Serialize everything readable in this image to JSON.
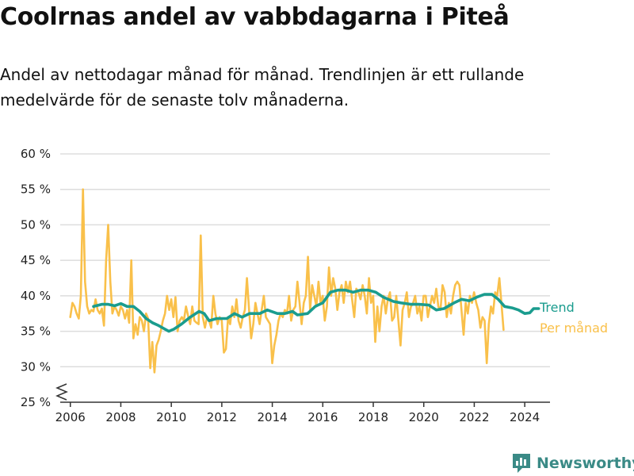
{
  "title": "Coolrnas andel av vabbdagarna i Piteå",
  "subtitle": "Andel av nettodagar månad för månad. Trendlinjen är ett rullande medelvärde för de senaste tolv månaderna.",
  "brand": "Newsworthy",
  "colors": {
    "trend": "#1a9c8e",
    "monthly": "#f9c04a",
    "grid": "#dddddd",
    "axis": "#333333",
    "brand": "#3a8a86"
  },
  "chart_data": {
    "type": "line",
    "title": "Coolrnas andel av vabbdagarna i Piteå",
    "xlabel": "",
    "ylabel": "",
    "xlim": [
      2005.6,
      2025.0
    ],
    "ylim": [
      25,
      60
    ],
    "y_axis_break": true,
    "x_ticks": [
      2006,
      2008,
      2010,
      2012,
      2014,
      2016,
      2018,
      2020,
      2022,
      2024
    ],
    "y_ticks": [
      {
        "value": 25,
        "label": "25 %"
      },
      {
        "value": 30,
        "label": "30 %"
      },
      {
        "value": 35,
        "label": "35 %"
      },
      {
        "value": 40,
        "label": "40 %"
      },
      {
        "value": 45,
        "label": "45 %"
      },
      {
        "value": 50,
        "label": "50 %"
      },
      {
        "value": 55,
        "label": "55 %"
      },
      {
        "value": 60,
        "label": "60 %"
      }
    ],
    "grid": true,
    "legend": "direct labels at right end of lines",
    "series": [
      {
        "name": "Per månad",
        "color": "#f9c04a",
        "x_start": 2006.0,
        "step": 0.0833,
        "values": [
          37.0,
          39.0,
          38.5,
          37.5,
          36.8,
          40.0,
          55.0,
          42.0,
          38.5,
          37.5,
          38.0,
          37.8,
          39.5,
          38.0,
          37.5,
          38.2,
          35.8,
          45.0,
          50.0,
          42.0,
          37.5,
          38.5,
          38.0,
          37.2,
          38.5,
          38.0,
          36.8,
          38.0,
          36.2,
          45.0,
          34.0,
          36.0,
          34.5,
          37.0,
          36.5,
          35.0,
          37.5,
          36.8,
          29.8,
          33.5,
          29.2,
          33.0,
          33.8,
          35.0,
          36.5,
          37.5,
          40.0,
          38.0,
          39.5,
          37.0,
          39.8,
          35.0,
          36.5,
          37.0,
          36.5,
          38.5,
          37.2,
          36.0,
          38.5,
          36.5,
          36.2,
          36.0,
          48.5,
          37.0,
          35.5,
          37.0,
          36.5,
          35.5,
          40.0,
          37.5,
          36.0,
          37.0,
          36.5,
          32.0,
          32.5,
          37.0,
          36.0,
          38.5,
          37.0,
          39.5,
          36.5,
          35.5,
          37.0,
          38.0,
          42.5,
          38.0,
          34.0,
          36.0,
          39.0,
          37.5,
          36.0,
          38.0,
          40.0,
          37.0,
          36.5,
          36.0,
          30.5,
          33.0,
          34.5,
          36.5,
          37.5,
          37.0,
          38.0,
          37.5,
          40.0,
          36.5,
          38.0,
          38.5,
          42.0,
          39.0,
          36.0,
          39.0,
          40.0,
          45.5,
          38.0,
          41.5,
          40.0,
          38.5,
          42.0,
          39.0,
          40.0,
          36.5,
          38.5,
          44.0,
          40.0,
          42.5,
          41.0,
          38.0,
          40.5,
          41.5,
          39.0,
          42.0,
          40.5,
          42.0,
          39.5,
          37.0,
          41.0,
          40.5,
          39.5,
          41.5,
          40.0,
          37.5,
          42.5,
          39.0,
          40.0,
          33.5,
          38.5,
          35.0,
          38.5,
          40.0,
          37.5,
          39.5,
          40.5,
          36.5,
          37.0,
          40.0,
          36.5,
          33.0,
          38.0,
          39.0,
          40.5,
          37.0,
          38.5,
          39.0,
          40.0,
          37.5,
          38.5,
          36.5,
          40.0,
          40.0,
          37.0,
          38.5,
          40.0,
          39.0,
          41.0,
          38.5,
          38.0,
          41.5,
          40.5,
          37.0,
          39.0,
          37.5,
          40.0,
          41.5,
          42.0,
          41.5,
          38.0,
          34.5,
          39.0,
          37.5,
          40.0,
          39.0,
          40.5,
          39.0,
          38.0,
          35.5,
          37.0,
          36.5,
          30.5,
          36.0,
          38.5,
          37.5,
          40.5,
          40.0,
          42.5,
          39.0,
          35.2
        ]
      },
      {
        "name": "Trend",
        "color": "#1a9c8e",
        "points": [
          [
            2006.92,
            38.5
          ],
          [
            2007.25,
            38.8
          ],
          [
            2007.5,
            38.8
          ],
          [
            2007.75,
            38.6
          ],
          [
            2008.0,
            38.9
          ],
          [
            2008.25,
            38.5
          ],
          [
            2008.5,
            38.5
          ],
          [
            2008.75,
            37.8
          ],
          [
            2009.0,
            36.8
          ],
          [
            2009.25,
            36.2
          ],
          [
            2009.5,
            35.8
          ],
          [
            2009.75,
            35.3
          ],
          [
            2009.9,
            35.0
          ],
          [
            2010.1,
            35.3
          ],
          [
            2010.4,
            36.0
          ],
          [
            2010.75,
            37.0
          ],
          [
            2011.1,
            37.8
          ],
          [
            2011.3,
            37.5
          ],
          [
            2011.5,
            36.5
          ],
          [
            2011.8,
            36.8
          ],
          [
            2012.2,
            36.8
          ],
          [
            2012.5,
            37.5
          ],
          [
            2012.8,
            37.0
          ],
          [
            2013.1,
            37.5
          ],
          [
            2013.5,
            37.5
          ],
          [
            2013.8,
            38.0
          ],
          [
            2014.2,
            37.5
          ],
          [
            2014.5,
            37.5
          ],
          [
            2014.8,
            37.8
          ],
          [
            2015.0,
            37.3
          ],
          [
            2015.4,
            37.5
          ],
          [
            2015.7,
            38.5
          ],
          [
            2016.0,
            39.0
          ],
          [
            2016.3,
            40.5
          ],
          [
            2016.6,
            40.8
          ],
          [
            2016.9,
            40.8
          ],
          [
            2017.2,
            40.5
          ],
          [
            2017.5,
            40.8
          ],
          [
            2017.8,
            40.8
          ],
          [
            2018.1,
            40.5
          ],
          [
            2018.4,
            39.8
          ],
          [
            2018.8,
            39.2
          ],
          [
            2019.1,
            39.0
          ],
          [
            2019.5,
            38.8
          ],
          [
            2019.8,
            38.8
          ],
          [
            2020.2,
            38.7
          ],
          [
            2020.5,
            38.0
          ],
          [
            2020.8,
            38.2
          ],
          [
            2021.2,
            39.0
          ],
          [
            2021.5,
            39.5
          ],
          [
            2021.8,
            39.3
          ],
          [
            2022.1,
            39.8
          ],
          [
            2022.4,
            40.2
          ],
          [
            2022.7,
            40.2
          ],
          [
            2022.95,
            39.5
          ],
          [
            2023.2,
            38.5
          ],
          [
            2023.5,
            38.3
          ],
          [
            2023.75,
            38.0
          ],
          [
            2024.0,
            37.5
          ],
          [
            2024.2,
            37.6
          ],
          [
            2024.35,
            38.2
          ],
          [
            2024.55,
            38.2
          ]
        ]
      }
    ],
    "labels": {
      "trend": "Trend",
      "monthly": "Per månad"
    }
  }
}
